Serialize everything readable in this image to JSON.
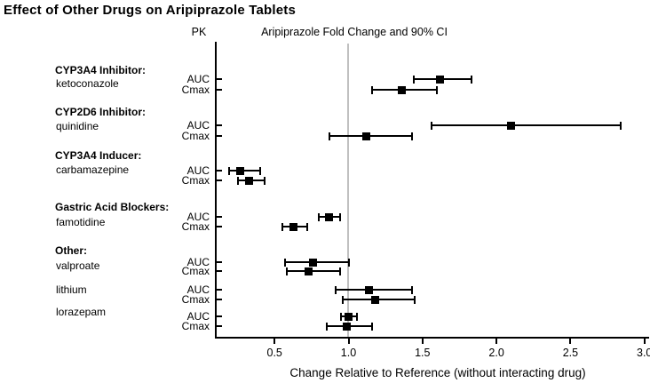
{
  "chart_data": {
    "type": "scatter",
    "subtype": "forest-plot",
    "title": "Effect of Other Drugs on Aripiprazole Tablets",
    "column_headers": {
      "pk": "PK",
      "estimate": "Aripiprazole Fold Change and 90% CI"
    },
    "xlabel": "Change Relative to Reference (without interacting drug)",
    "x_ticks": [
      0.5,
      1.0,
      1.5,
      2.0,
      2.5,
      3.0
    ],
    "x_tick_labels": [
      "0.5",
      "1.0",
      "1.5",
      "2.0",
      "2.5",
      "3.0"
    ],
    "xlim": [
      0.1,
      3.03
    ],
    "reference_line": 1.0,
    "grid": false,
    "legend": "none",
    "colors": {
      "marker": "#000000",
      "ci": "#000000",
      "axis": "#000000",
      "reference_line": "#c0c0c0",
      "text": "#000000"
    },
    "groups": [
      {
        "header": "CYP3A4 Inhibitor:",
        "drugs": [
          {
            "name": "ketoconazole",
            "rows": [
              {
                "pk": "AUC",
                "estimate": 1.62,
                "ci_low": 1.44,
                "ci_high": 1.83
              },
              {
                "pk": "Cmax",
                "estimate": 1.36,
                "ci_low": 1.16,
                "ci_high": 1.6
              }
            ]
          }
        ]
      },
      {
        "header": "CYP2D6 Inhibitor:",
        "drugs": [
          {
            "name": "quinidine",
            "rows": [
              {
                "pk": "AUC",
                "estimate": 2.1,
                "ci_low": 1.56,
                "ci_high": 2.84
              },
              {
                "pk": "Cmax",
                "estimate": 1.12,
                "ci_low": 0.87,
                "ci_high": 1.43
              }
            ]
          }
        ]
      },
      {
        "header": "CYP3A4 Inducer:",
        "drugs": [
          {
            "name": "carbamazepine",
            "rows": [
              {
                "pk": "AUC",
                "estimate": 0.27,
                "ci_low": 0.19,
                "ci_high": 0.4
              },
              {
                "pk": "Cmax",
                "estimate": 0.33,
                "ci_low": 0.25,
                "ci_high": 0.43
              }
            ]
          }
        ]
      },
      {
        "header": "Gastric Acid Blockers:",
        "drugs": [
          {
            "name": "famotidine",
            "rows": [
              {
                "pk": "AUC",
                "estimate": 0.87,
                "ci_low": 0.8,
                "ci_high": 0.94
              },
              {
                "pk": "Cmax",
                "estimate": 0.63,
                "ci_low": 0.55,
                "ci_high": 0.72
              }
            ]
          }
        ]
      },
      {
        "header": "Other:",
        "drugs": [
          {
            "name": "valproate",
            "rows": [
              {
                "pk": "AUC",
                "estimate": 0.76,
                "ci_low": 0.57,
                "ci_high": 1.0
              },
              {
                "pk": "Cmax",
                "estimate": 0.73,
                "ci_low": 0.58,
                "ci_high": 0.94
              }
            ]
          },
          {
            "name": "lithium",
            "rows": [
              {
                "pk": "AUC",
                "estimate": 1.14,
                "ci_low": 0.91,
                "ci_high": 1.43
              },
              {
                "pk": "Cmax",
                "estimate": 1.18,
                "ci_low": 0.96,
                "ci_high": 1.45
              }
            ]
          },
          {
            "name": "lorazepam",
            "rows": [
              {
                "pk": "AUC",
                "estimate": 1.0,
                "ci_low": 0.95,
                "ci_high": 1.06
              },
              {
                "pk": "Cmax",
                "estimate": 0.99,
                "ci_low": 0.85,
                "ci_high": 1.16
              }
            ]
          }
        ]
      }
    ]
  }
}
